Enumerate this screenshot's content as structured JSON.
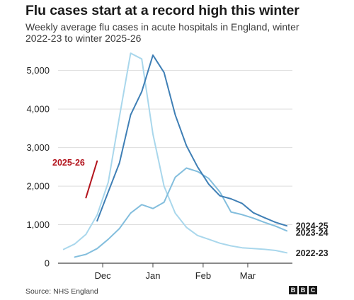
{
  "header": {
    "title": "Flu cases start at a record high this winter",
    "subtitle": "Weekly average flu cases in acute hospitals in England, winter 2022-23 to winter 2025-26"
  },
  "footer": {
    "source": "Source: NHS England",
    "logo": [
      "B",
      "B",
      "C"
    ]
  },
  "colors": {
    "s2022": "#a9d7ec",
    "s2023": "#83bedd",
    "s2024": "#3f7fb5",
    "s2025": "#b3141d",
    "grid": "#dddddd",
    "axis": "#444444",
    "label": "#222222"
  },
  "chart_data": {
    "type": "line",
    "title": "Flu cases start at a record high this winter",
    "subtitle": "Weekly average flu cases in acute hospitals in England, winter 2022-23 to winter 2025-26",
    "xlabel": "",
    "ylabel": "",
    "x_unit": "week",
    "x_ticks": [
      {
        "x": 3.5,
        "label": "Dec"
      },
      {
        "x": 8,
        "label": "Jan"
      },
      {
        "x": 12.5,
        "label": "Feb"
      },
      {
        "x": 16.5,
        "label": "Mar"
      }
    ],
    "xlim": [
      -0.5,
      20.5
    ],
    "ylim": [
      0,
      5600
    ],
    "y_ticks": [
      0,
      1000,
      2000,
      3000,
      4000,
      5000
    ],
    "y_tick_labels": [
      "0",
      "1,000",
      "2,000",
      "3,000",
      "4,000",
      "5,000"
    ],
    "grid": "horizontal",
    "legend": "labels at line ends",
    "series": [
      {
        "name": "2022-23",
        "key": "s2022",
        "x": [
          0,
          1,
          2,
          3,
          4,
          5,
          6,
          7,
          8,
          9,
          10,
          11,
          12,
          13,
          14,
          15,
          16,
          17,
          18,
          19,
          20
        ],
        "values": [
          360,
          500,
          750,
          1250,
          2100,
          3800,
          5450,
          5300,
          3350,
          2000,
          1300,
          930,
          720,
          620,
          520,
          450,
          400,
          380,
          360,
          330,
          270
        ]
      },
      {
        "name": "2023-24",
        "key": "s2023",
        "x": [
          1,
          2,
          3,
          4,
          5,
          6,
          7,
          8,
          9,
          10,
          11,
          12,
          13,
          14,
          15,
          16,
          17,
          18,
          19,
          20
        ],
        "values": [
          160,
          230,
          380,
          620,
          900,
          1300,
          1520,
          1420,
          1580,
          2230,
          2470,
          2380,
          2200,
          1850,
          1330,
          1260,
          1170,
          1060,
          960,
          840
        ]
      },
      {
        "name": "2024-25",
        "key": "s2024",
        "x": [
          3,
          4,
          5,
          6,
          7,
          8,
          9,
          10,
          11,
          12,
          13,
          14,
          15,
          16,
          17,
          18,
          19,
          20
        ],
        "values": [
          1100,
          1850,
          2600,
          3850,
          4450,
          5400,
          4950,
          3850,
          3050,
          2500,
          2050,
          1750,
          1670,
          1550,
          1310,
          1180,
          1060,
          970
        ]
      },
      {
        "name": "2025-26",
        "key": "s2025",
        "x": [
          2,
          3
        ],
        "values": [
          1700,
          2650
        ]
      }
    ],
    "annotations": [
      {
        "text": "2025-26",
        "key": "s2025",
        "x": 0,
        "y": 2620,
        "anchor": "start",
        "weight": "bold"
      },
      {
        "text": "2024-25",
        "key": "label",
        "x": 20.8,
        "y": 970,
        "anchor": "start",
        "weight": "bold"
      },
      {
        "text": "2023-24",
        "key": "label",
        "x": 20.8,
        "y": 800,
        "anchor": "start",
        "weight": "bold"
      },
      {
        "text": "2022-23",
        "key": "label",
        "x": 20.8,
        "y": 270,
        "anchor": "start",
        "weight": "bold"
      }
    ]
  }
}
